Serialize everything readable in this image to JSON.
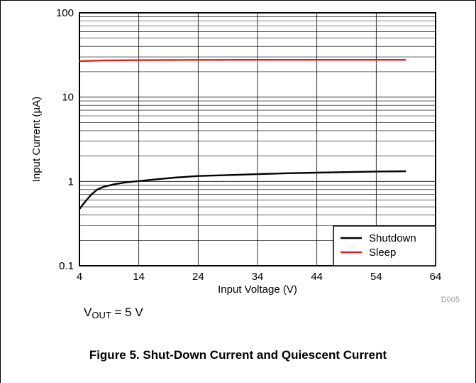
{
  "chart_data": {
    "type": "line",
    "title": "",
    "xlabel": "Input Voltage (V)",
    "ylabel": "Input Current (µA)",
    "xlim": [
      4,
      64
    ],
    "ylim": [
      0.1,
      100
    ],
    "yscale": "log",
    "grid": true,
    "legend_position": "bottom-right",
    "x_ticks": [
      "4",
      "14",
      "24",
      "34",
      "44",
      "54",
      "64"
    ],
    "y_ticks": [
      "0.1",
      "1",
      "10",
      "100"
    ],
    "series": [
      {
        "name": "Shutdown",
        "color": "#000000",
        "x": [
          4,
          5,
          6,
          7,
          8,
          10,
          12,
          14,
          17,
          20,
          24,
          29,
          34,
          39,
          44,
          49,
          54,
          59
        ],
        "y": [
          0.47,
          0.58,
          0.7,
          0.8,
          0.86,
          0.93,
          0.98,
          1.01,
          1.06,
          1.11,
          1.16,
          1.19,
          1.22,
          1.25,
          1.27,
          1.29,
          1.31,
          1.32
        ]
      },
      {
        "name": "Sleep",
        "color": "#e02020",
        "x": [
          4,
          6,
          8,
          14,
          24,
          34,
          44,
          54,
          59
        ],
        "y": [
          26.7,
          27.0,
          27.2,
          27.4,
          27.6,
          27.7,
          27.7,
          27.7,
          27.7
        ]
      }
    ],
    "code_label": "D005"
  },
  "condition": {
    "prefix": "V",
    "subscript": "OUT",
    "suffix": " = 5 V"
  },
  "caption": "Figure 5. Shut-Down Current and Quiescent Current"
}
